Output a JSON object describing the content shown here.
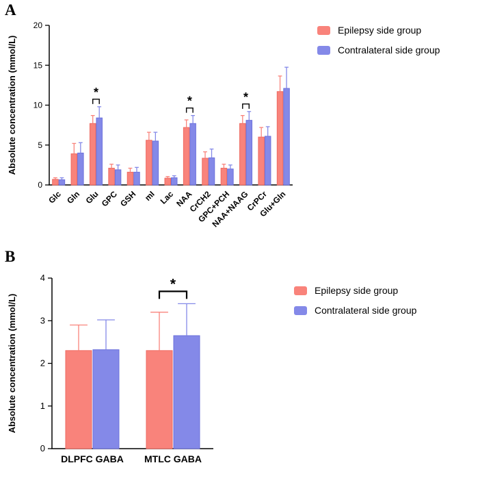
{
  "panels": [
    {
      "label": "A"
    },
    {
      "label": "B"
    }
  ],
  "chart_data": [
    {
      "type": "bar",
      "panel": "A",
      "title": "",
      "xlabel": "",
      "ylabel": "Absolute concentration (mmol/L)",
      "ylim": [
        0,
        20
      ],
      "yticks": [
        0,
        5,
        10,
        15,
        20
      ],
      "grid": false,
      "legend_position": "right",
      "categories": [
        "Glc",
        "Gln",
        "Glu",
        "GPC",
        "GSH",
        "mI",
        "Lac",
        "NAA",
        "CrCH2",
        "GPC+PCH",
        "NAA+NAAG",
        "CrPCr",
        "Glu+Gln"
      ],
      "series": [
        {
          "name": "Epilepsy side group",
          "color": "#F9837B",
          "edge": "#EE6A61",
          "values": [
            0.7,
            3.9,
            7.7,
            2.1,
            1.6,
            5.6,
            0.85,
            7.2,
            3.35,
            2.1,
            7.7,
            6.0,
            11.7
          ],
          "errors": [
            0.2,
            1.3,
            1.0,
            0.5,
            0.5,
            1.0,
            0.2,
            0.95,
            0.8,
            0.5,
            1.0,
            1.2,
            1.95
          ]
        },
        {
          "name": "Contralateral side group",
          "color": "#8489E8",
          "edge": "#6C71DB",
          "values": [
            0.65,
            4.0,
            8.4,
            1.9,
            1.6,
            5.5,
            0.9,
            7.7,
            3.4,
            2.0,
            8.1,
            6.1,
            12.1
          ],
          "errors": [
            0.25,
            1.3,
            1.4,
            0.6,
            0.6,
            1.1,
            0.25,
            1.0,
            1.1,
            0.5,
            1.1,
            1.2,
            2.65
          ]
        }
      ],
      "significance": [
        {
          "category": "Glu",
          "label": "*"
        },
        {
          "category": "NAA",
          "label": "*"
        },
        {
          "category": "NAA+NAAG",
          "label": "*"
        }
      ]
    },
    {
      "type": "bar",
      "panel": "B",
      "title": "",
      "xlabel": "",
      "ylabel": "Absolute concentration (mmol/L)",
      "ylim": [
        0,
        4
      ],
      "yticks": [
        0,
        1,
        2,
        3,
        4
      ],
      "grid": false,
      "legend_position": "right",
      "categories": [
        "DLPFC GABA",
        "MTLC GABA"
      ],
      "series": [
        {
          "name": "Epilepsy side group",
          "color": "#F9837B",
          "edge": "#EE6A61",
          "values": [
            2.3,
            2.3
          ],
          "errors": [
            0.6,
            0.9
          ]
        },
        {
          "name": "Contralateral side group",
          "color": "#8489E8",
          "edge": "#6C71DB",
          "values": [
            2.32,
            2.65
          ],
          "errors": [
            0.7,
            0.75
          ]
        }
      ],
      "significance": [
        {
          "category": "MTLC GABA",
          "label": "*"
        }
      ]
    }
  ]
}
